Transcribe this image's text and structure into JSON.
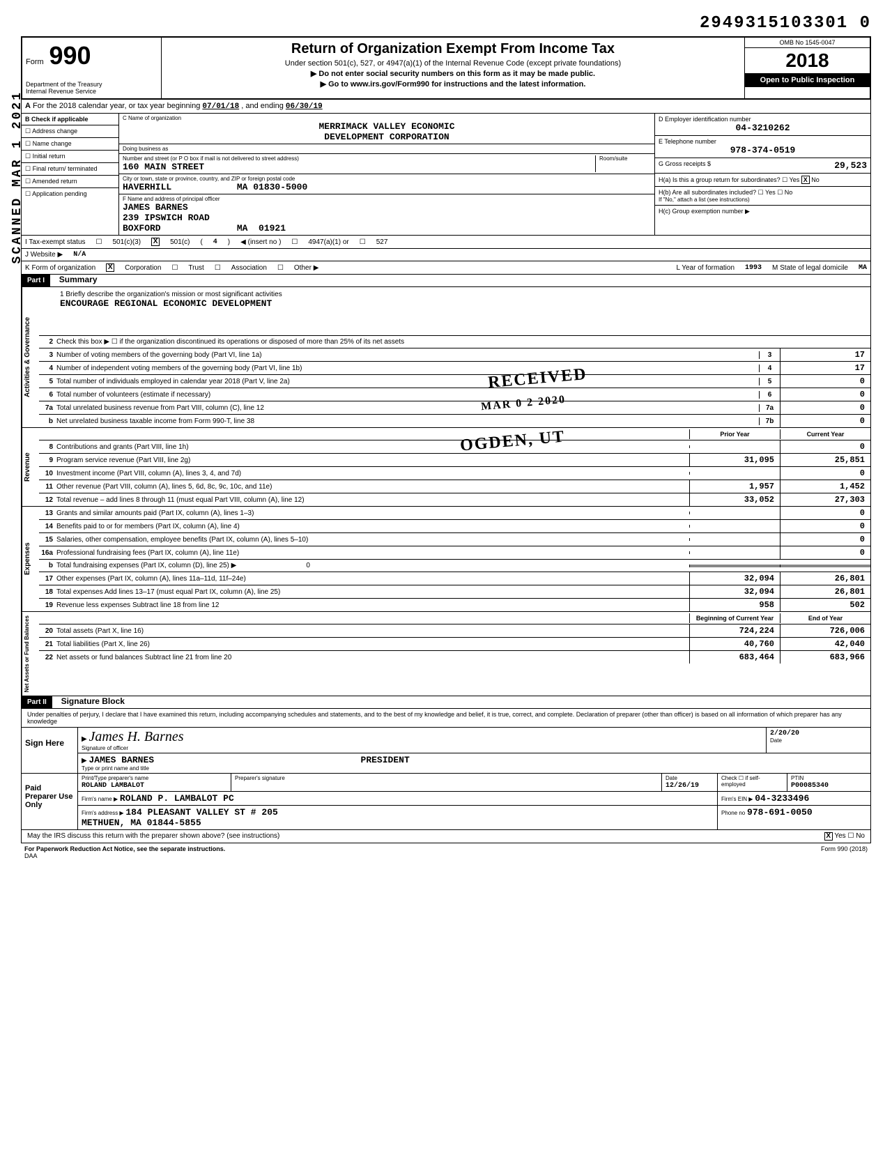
{
  "top_id": "2949315103301 0",
  "header": {
    "form_word": "Form",
    "form_num": "990",
    "dept": "Department of the Treasury\nInternal Revenue Service",
    "title": "Return of Organization Exempt From Income Tax",
    "subtitle": "Under section 501(c), 527, or 4947(a)(1) of the Internal Revenue Code (except private foundations)",
    "arrow1": "▶ Do not enter social security numbers on this form as it may be made public.",
    "arrow2": "▶ Go to www.irs.gov/Form990 for instructions and the latest information.",
    "omb": "OMB No 1545-0047",
    "year": "2018",
    "open": "Open to Public Inspection"
  },
  "row_a": {
    "label_a": "A",
    "text": "For the 2018 calendar year, or tax year beginning",
    "begin": "07/01/18",
    "mid": ", and ending",
    "end": "06/30/19"
  },
  "col_b": {
    "header": "B Check if applicable",
    "items": [
      "Address change",
      "Name change",
      "Initial return",
      "Final return/ terminated",
      "Amended return",
      "Application pending"
    ]
  },
  "org": {
    "name_label": "C Name of organization",
    "name": "MERRIMACK VALLEY ECONOMIC",
    "name2": "DEVELOPMENT CORPORATION",
    "dba_label": "Doing business as",
    "street_label": "Number and street (or P O box if mail is not delivered to street address)",
    "street": "160 MAIN STREET",
    "room_label": "Room/suite",
    "city_label": "City or town, state or province, country, and ZIP or foreign postal code",
    "city": "HAVERHILL            MA 01830-5000",
    "officer_label": "F Name and address of principal officer",
    "officer_name": "JAMES BARNES",
    "officer_street": "239 IPSWICH ROAD",
    "officer_city": "BOXFORD              MA  01921"
  },
  "right": {
    "ein_label": "D Employer identification number",
    "ein": "04-3210262",
    "phone_label": "E Telephone number",
    "phone": "978-374-0519",
    "gross_label": "G Gross receipts $",
    "gross": "29,523",
    "ha": "H(a) Is this a group return for subordinates?",
    "ha_yes": "Yes",
    "ha_no": "No",
    "ha_checked": "X",
    "hb": "H(b) Are all subordinates included?",
    "hb_yes": "Yes",
    "hb_no": "No",
    "hb_note": "If \"No,\" attach a list (see instructions)",
    "hc": "H(c) Group exemption number ▶"
  },
  "status": {
    "i_label": "I   Tax-exempt status",
    "c3": "501(c)(3)",
    "c": "501(c)",
    "c_num": "4",
    "insert": "◀ (insert no )",
    "a4947": "4947(a)(1) or",
    "s527": "527",
    "j_label": "J   Website ▶",
    "website": "N/A",
    "k_label": "K   Form of organization",
    "corp": "Corporation",
    "trust": "Trust",
    "assoc": "Association",
    "other": "Other ▶",
    "l_label": "L  Year of formation",
    "l_val": "1993",
    "m_label": "M  State of legal domicile",
    "m_val": "MA"
  },
  "part1": {
    "label": "Part I",
    "title": "Summary"
  },
  "mission": {
    "line1_label": "1  Briefly describe the organization's mission or most significant activities",
    "text": "ENCOURAGE REGIONAL ECONOMIC DEVELOPMENT"
  },
  "gov_lines": [
    {
      "n": "2",
      "t": "Check this box ▶ ☐  if the organization discontinued its operations or disposed of more than 25% of its net assets"
    },
    {
      "n": "3",
      "t": "Number of voting members of the governing body (Part VI, line 1a)",
      "box": "3",
      "v": "17"
    },
    {
      "n": "4",
      "t": "Number of independent voting members of the governing body (Part VI, line 1b)",
      "box": "4",
      "v": "17"
    },
    {
      "n": "5",
      "t": "Total number of individuals employed in calendar year 2018 (Part V, line 2a)",
      "box": "5",
      "v": "0"
    },
    {
      "n": "6",
      "t": "Total number of volunteers (estimate if necessary)",
      "box": "6",
      "v": "0"
    },
    {
      "n": "7a",
      "t": "Total unrelated business revenue from Part VIII, column (C), line 12",
      "box": "7a",
      "v": "0"
    },
    {
      "n": "b",
      "t": "Net unrelated business taxable income from Form 990-T, line 38",
      "box": "7b",
      "v": "0"
    }
  ],
  "two_col_header": {
    "prior": "Prior Year",
    "current": "Current Year"
  },
  "revenue": [
    {
      "n": "8",
      "t": "Contributions and grants (Part VIII, line 1h)",
      "p": "",
      "c": "0"
    },
    {
      "n": "9",
      "t": "Program service revenue (Part VIII, line 2g)",
      "p": "31,095",
      "c": "25,851"
    },
    {
      "n": "10",
      "t": "Investment income (Part VIII, column (A), lines 3, 4, and 7d)",
      "p": "",
      "c": "0"
    },
    {
      "n": "11",
      "t": "Other revenue (Part VIII, column (A), lines 5, 6d, 8c, 9c, 10c, and 11e)",
      "p": "1,957",
      "c": "1,452"
    },
    {
      "n": "12",
      "t": "Total revenue – add lines 8 through 11 (must equal Part VIII, column (A), line 12)",
      "p": "33,052",
      "c": "27,303"
    }
  ],
  "expenses": [
    {
      "n": "13",
      "t": "Grants and similar amounts paid (Part IX, column (A), lines 1–3)",
      "p": "",
      "c": "0"
    },
    {
      "n": "14",
      "t": "Benefits paid to or for members (Part IX, column (A), line 4)",
      "p": "",
      "c": "0"
    },
    {
      "n": "15",
      "t": "Salaries, other compensation, employee benefits (Part IX, column (A), lines 5–10)",
      "p": "",
      "c": "0"
    },
    {
      "n": "16a",
      "t": "Professional fundraising fees (Part IX, column (A), line 11e)",
      "p": "",
      "c": "0"
    },
    {
      "n": "b",
      "t": "Total fundraising expenses (Part IX, column (D), line 25) ▶                                    0",
      "shaded": true
    },
    {
      "n": "17",
      "t": "Other expenses (Part IX, column (A), lines 11a–11d, 11f–24e)",
      "p": "32,094",
      "c": "26,801"
    },
    {
      "n": "18",
      "t": "Total expenses Add lines 13–17 (must equal Part IX, column (A), line 25)",
      "p": "32,094",
      "c": "26,801"
    },
    {
      "n": "19",
      "t": "Revenue less expenses Subtract line 18 from line 12",
      "p": "958",
      "c": "502"
    }
  ],
  "net_header": {
    "begin": "Beginning of Current Year",
    "end": "End of Year"
  },
  "net": [
    {
      "n": "20",
      "t": "Total assets (Part X, line 16)",
      "p": "724,224",
      "c": "726,006"
    },
    {
      "n": "21",
      "t": "Total liabilities (Part X, line 26)",
      "p": "40,760",
      "c": "42,040"
    },
    {
      "n": "22",
      "t": "Net assets or fund balances Subtract line 21 from line 20",
      "p": "683,464",
      "c": "683,966"
    }
  ],
  "part2": {
    "label": "Part II",
    "title": "Signature Block"
  },
  "sig": {
    "perjury": "Under penalties of perjury, I declare that I have examined this return, including accompanying schedules and statements, and to the best of my knowledge and belief, it is true, correct, and complete. Declaration of preparer (other than officer) is based on all information of which preparer has any knowledge",
    "sign_here": "Sign Here",
    "sig_script": "James H. Barnes",
    "sig_label": "Signature of officer",
    "date": "2/20/20",
    "date_label": "Date",
    "name": "JAMES BARNES                                      PRESIDENT",
    "name_label": "Type or print name and title",
    "paid": "Paid Preparer Use Only",
    "prep_name_label": "Print/Type preparer's name",
    "prep_name": "ROLAND LAMBALOT",
    "prep_sig_label": "Preparer's signature",
    "prep_date_label": "Date",
    "prep_date": "12/26/19",
    "check_label": "Check ☐ if self-employed",
    "ptin_label": "PTIN",
    "ptin": "P00085340",
    "firm_name_label": "Firm's name ▶",
    "firm_name": "ROLAND P. LAMBALOT PC",
    "firm_ein_label": "Firm's EIN ▶",
    "firm_ein": "04-3233496",
    "firm_addr_label": "Firm's address ▶",
    "firm_addr": "184 PLEASANT VALLEY ST # 205\nMETHUEN, MA  01844-5855",
    "firm_phone_label": "Phone no",
    "firm_phone": "978-691-0050",
    "irs_q": "May the IRS discuss this return with the preparer shown above? (see instructions)",
    "irs_yes": "Yes",
    "irs_no": "No",
    "irs_checked": "X"
  },
  "footer": {
    "left": "For Paperwork Reduction Act Notice, see the separate instructions.",
    "daa": "DAA",
    "right": "Form 990 (2018)"
  },
  "stamps": {
    "received": "RECEIVED",
    "date": "MAR 0 2 2020",
    "ogden": "OGDEN, UT",
    "scanned": "SCANNED MAR 1 2021"
  },
  "side_labels": {
    "gov": "Activities & Governance",
    "rev": "Revenue",
    "exp": "Expenses",
    "net": "Net Assets or Fund Balances"
  }
}
